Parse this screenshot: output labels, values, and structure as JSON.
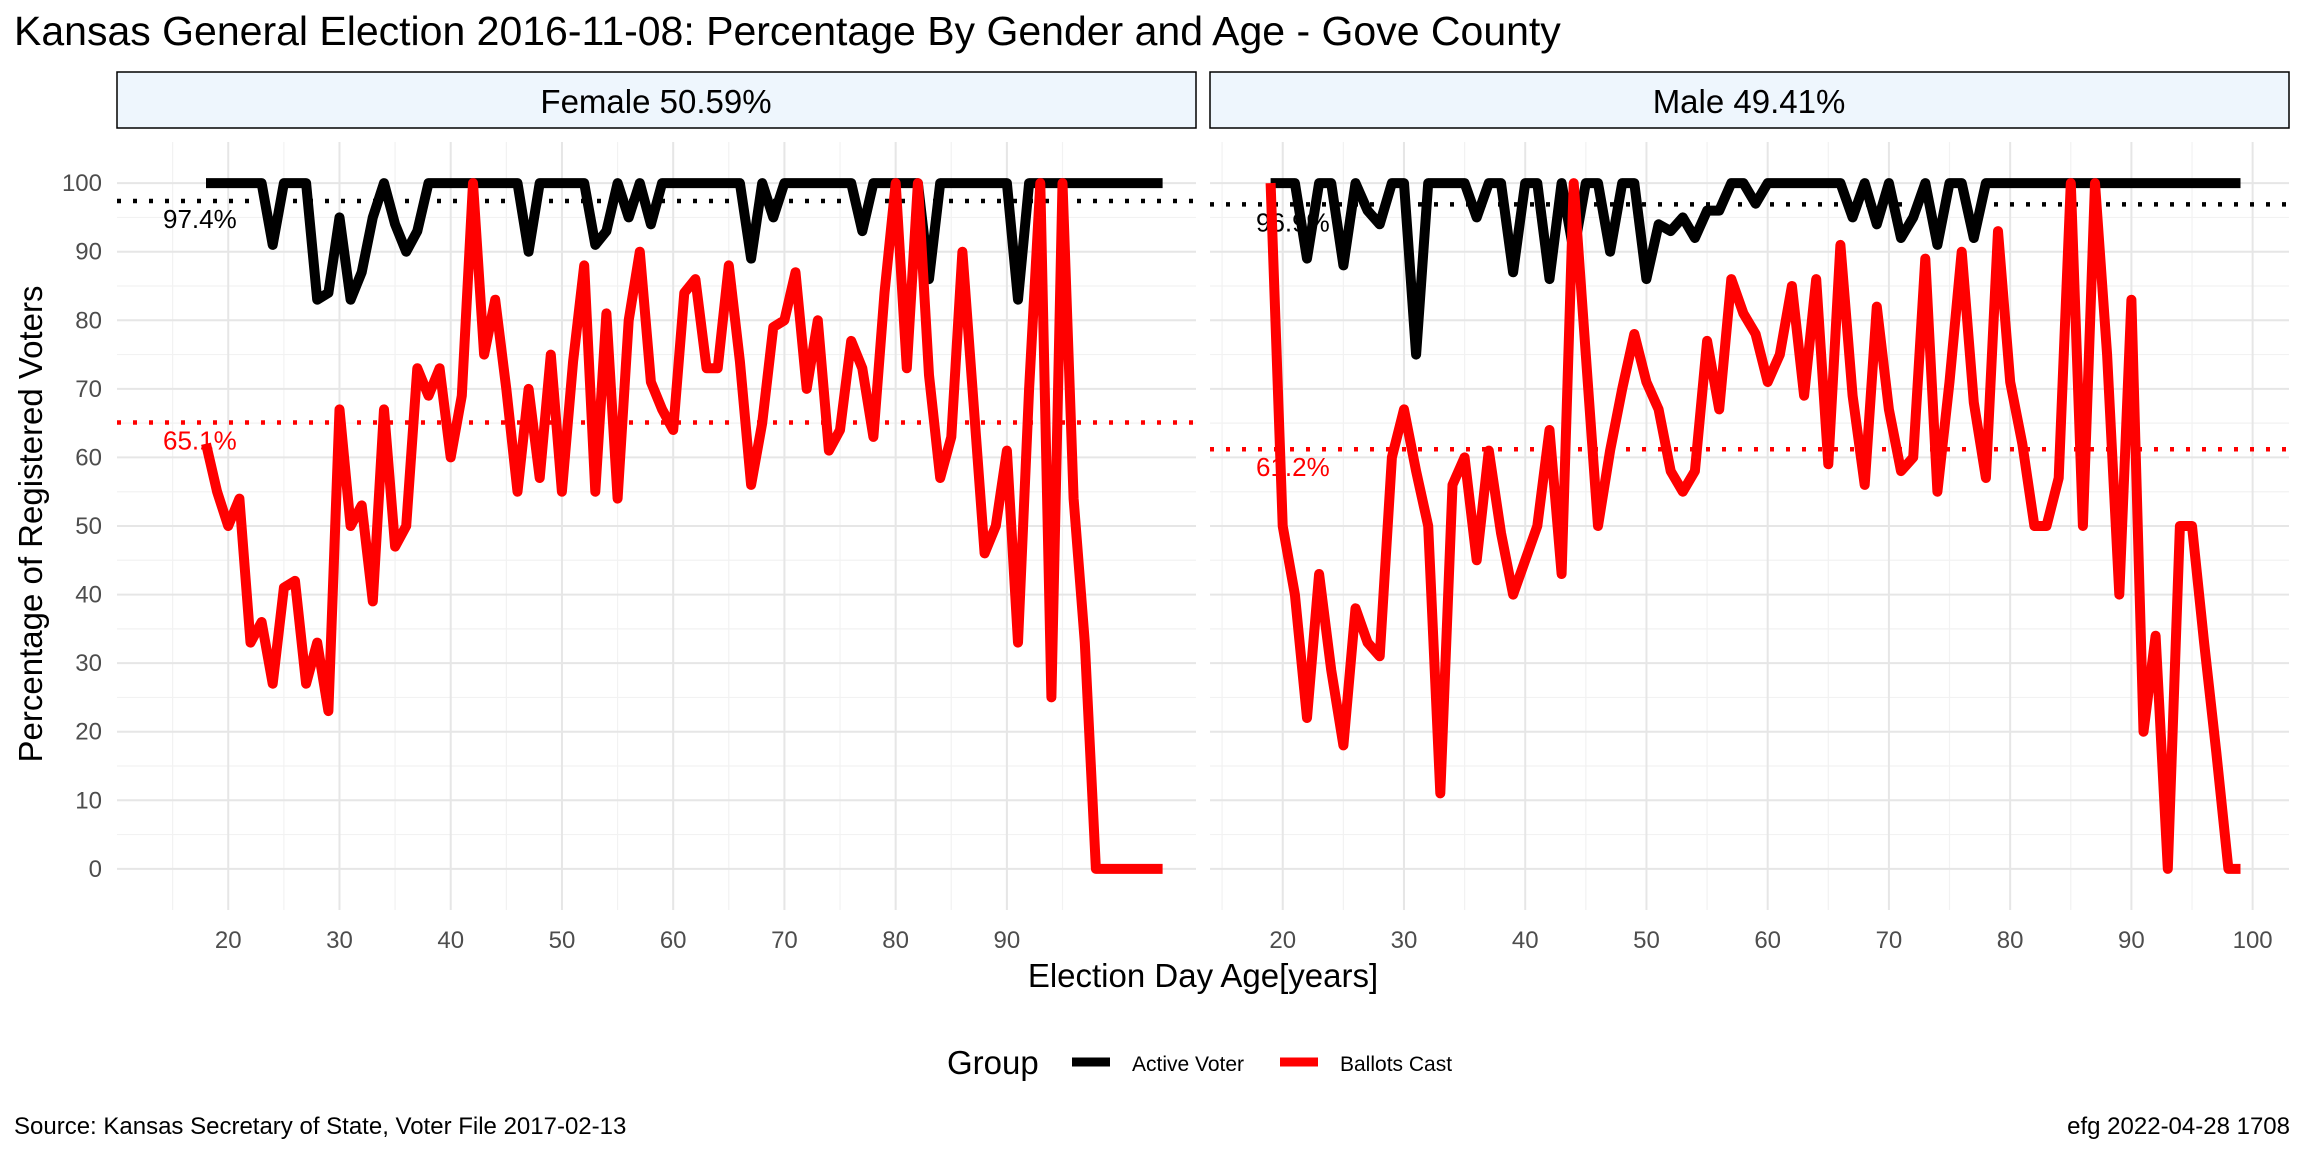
{
  "title": "Kansas General Election 2016-11-08:  Percentage By Gender and Age - Gove County",
  "xlabel": "Election Day Age[years]",
  "ylabel": "Percentage of Registered Voters",
  "legend_title": "Group",
  "source": "Source:  Kansas Secretary of State, Voter File  2017-02-13",
  "credit": "efg 2022-04-28 1708",
  "colors": {
    "active": "#000000",
    "ballots": "#ff0000",
    "strip_fill": "#eef6fd"
  },
  "chart_data": [
    {
      "type": "line",
      "panel": "Female 50.59%",
      "xlim": [
        10,
        107
      ],
      "ylim": [
        -6,
        106
      ],
      "x_ticks": [
        20,
        30,
        40,
        50,
        60,
        70,
        80,
        90
      ],
      "y_ticks": [
        0,
        10,
        20,
        30,
        40,
        50,
        60,
        70,
        80,
        90,
        100
      ],
      "grid": true,
      "legend_position": "bottom",
      "series": [
        {
          "name": "Active Voter",
          "x": [
            18,
            19,
            20,
            21,
            22,
            23,
            24,
            25,
            26,
            27,
            28,
            29,
            30,
            31,
            32,
            33,
            34,
            35,
            36,
            37,
            38,
            39,
            40,
            41,
            42,
            43,
            44,
            45,
            46,
            47,
            48,
            49,
            50,
            51,
            52,
            53,
            54,
            55,
            56,
            57,
            58,
            59,
            60,
            61,
            62,
            63,
            64,
            65,
            66,
            67,
            68,
            69,
            70,
            71,
            72,
            73,
            74,
            75,
            76,
            77,
            78,
            79,
            80,
            81,
            82,
            83,
            84,
            85,
            86,
            87,
            88,
            89,
            90,
            91,
            92,
            93,
            94,
            95,
            96,
            97,
            98,
            99,
            100,
            101,
            102,
            103,
            104
          ],
          "y": [
            100,
            100,
            100,
            100,
            100,
            100,
            91,
            100,
            100,
            100,
            83,
            84,
            95,
            83,
            87,
            95,
            100,
            94,
            90,
            93,
            100,
            100,
            100,
            100,
            100,
            100,
            100,
            100,
            100,
            90,
            100,
            100,
            100,
            100,
            100,
            91,
            93,
            100,
            95,
            100,
            94,
            100,
            100,
            100,
            100,
            100,
            100,
            100,
            100,
            89,
            100,
            95,
            100,
            100,
            100,
            100,
            100,
            100,
            100,
            93,
            100,
            100,
            100,
            100,
            100,
            86,
            100,
            100,
            100,
            100,
            100,
            100,
            100,
            83,
            100,
            100,
            100,
            100,
            100,
            100,
            100,
            100,
            100,
            100,
            100,
            100,
            100
          ]
        },
        {
          "name": "Ballots Cast",
          "x": [
            18,
            19,
            20,
            21,
            22,
            23,
            24,
            25,
            26,
            27,
            28,
            29,
            30,
            31,
            32,
            33,
            34,
            35,
            36,
            37,
            38,
            39,
            40,
            41,
            42,
            43,
            44,
            45,
            46,
            47,
            48,
            49,
            50,
            51,
            52,
            53,
            54,
            55,
            56,
            57,
            58,
            59,
            60,
            61,
            62,
            63,
            64,
            65,
            66,
            67,
            68,
            69,
            70,
            71,
            72,
            73,
            74,
            75,
            76,
            77,
            78,
            79,
            80,
            81,
            82,
            83,
            84,
            85,
            86,
            87,
            88,
            89,
            90,
            91,
            92,
            93,
            94,
            95,
            96,
            97,
            98,
            99,
            100,
            101,
            102,
            103,
            104
          ],
          "y": [
            62,
            55,
            50,
            54,
            33,
            36,
            27,
            41,
            42,
            27,
            33,
            23,
            67,
            50,
            53,
            39,
            67,
            47,
            50,
            73,
            69,
            73,
            60,
            69,
            100,
            75,
            83,
            70,
            55,
            70,
            57,
            75,
            55,
            74,
            88,
            55,
            81,
            54,
            80,
            90,
            71,
            67,
            64,
            84,
            86,
            73,
            73,
            88,
            74,
            56,
            65,
            79,
            80,
            87,
            70,
            80,
            61,
            64,
            77,
            73,
            63,
            84,
            100,
            73,
            100,
            72,
            57,
            63,
            90,
            68,
            46,
            50,
            61,
            33,
            70,
            100,
            25,
            100,
            54,
            33,
            0,
            0,
            0,
            0,
            0,
            0,
            0
          ]
        }
      ],
      "reference_lines": [
        {
          "series": "Active Voter",
          "value": 97.4,
          "label": "97.4%"
        },
        {
          "series": "Ballots Cast",
          "value": 65.1,
          "label": "65.1%"
        }
      ]
    },
    {
      "type": "line",
      "panel": "Male 49.41%",
      "xlim": [
        14,
        103
      ],
      "ylim": [
        -6,
        106
      ],
      "x_ticks": [
        20,
        30,
        40,
        50,
        60,
        70,
        80,
        90,
        100
      ],
      "y_ticks": [
        0,
        10,
        20,
        30,
        40,
        50,
        60,
        70,
        80,
        90,
        100
      ],
      "grid": true,
      "legend_position": "bottom",
      "series": [
        {
          "name": "Active Voter",
          "x": [
            19,
            20,
            21,
            22,
            23,
            24,
            25,
            26,
            27,
            28,
            29,
            30,
            31,
            32,
            33,
            34,
            35,
            36,
            37,
            38,
            39,
            40,
            41,
            42,
            43,
            44,
            45,
            46,
            47,
            48,
            49,
            50,
            51,
            52,
            53,
            54,
            55,
            56,
            57,
            58,
            59,
            60,
            61,
            62,
            63,
            64,
            65,
            66,
            67,
            68,
            69,
            70,
            71,
            72,
            73,
            74,
            75,
            76,
            77,
            78,
            79,
            80,
            81,
            82,
            83,
            84,
            85,
            86,
            87,
            88,
            89,
            90,
            91,
            92,
            93,
            94,
            95,
            96,
            97,
            98,
            99
          ],
          "y": [
            100,
            100,
            100,
            89,
            100,
            100,
            88,
            100,
            96,
            94,
            100,
            100,
            75,
            100,
            100,
            100,
            100,
            95,
            100,
            100,
            87,
            100,
            100,
            86,
            100,
            90,
            100,
            100,
            90,
            100,
            100,
            86,
            94,
            93,
            95,
            92,
            96,
            96,
            100,
            100,
            97,
            100,
            100,
            100,
            100,
            100,
            100,
            100,
            95,
            100,
            94,
            100,
            92,
            95,
            100,
            91,
            100,
            100,
            92,
            100,
            100,
            100,
            100,
            100,
            100,
            100,
            100,
            100,
            100,
            100,
            100,
            100,
            100,
            100,
            100,
            100,
            100,
            100,
            100,
            100,
            100
          ]
        },
        {
          "name": "Ballots Cast",
          "x": [
            19,
            20,
            21,
            22,
            23,
            24,
            25,
            26,
            27,
            28,
            29,
            30,
            31,
            32,
            33,
            34,
            35,
            36,
            37,
            38,
            39,
            40,
            41,
            42,
            43,
            44,
            45,
            46,
            47,
            48,
            49,
            50,
            51,
            52,
            53,
            54,
            55,
            56,
            57,
            58,
            59,
            60,
            61,
            62,
            63,
            64,
            65,
            66,
            67,
            68,
            69,
            70,
            71,
            72,
            73,
            74,
            75,
            76,
            77,
            78,
            79,
            80,
            81,
            82,
            83,
            84,
            85,
            86,
            87,
            88,
            89,
            90,
            91,
            92,
            93,
            94,
            95,
            96,
            97,
            98,
            99
          ],
          "y": [
            100,
            50,
            40,
            22,
            43,
            29,
            18,
            38,
            33,
            31,
            60,
            67,
            58,
            50,
            11,
            56,
            60,
            45,
            61,
            49,
            40,
            45,
            50,
            64,
            43,
            100,
            75,
            50,
            61,
            70,
            78,
            71,
            67,
            58,
            55,
            58,
            77,
            67,
            86,
            81,
            78,
            71,
            75,
            85,
            69,
            86,
            59,
            91,
            69,
            56,
            82,
            67,
            58,
            60,
            89,
            55,
            71,
            90,
            68,
            57,
            93,
            71,
            62,
            50,
            50,
            57,
            100,
            50,
            100,
            75,
            40,
            83,
            20,
            34,
            0,
            50,
            50,
            33,
            17,
            0,
            0
          ]
        }
      ],
      "reference_lines": [
        {
          "series": "Active Voter",
          "value": 96.9,
          "label": "96.9%"
        },
        {
          "series": "Ballots Cast",
          "value": 61.2,
          "label": "61.2%"
        }
      ]
    }
  ]
}
